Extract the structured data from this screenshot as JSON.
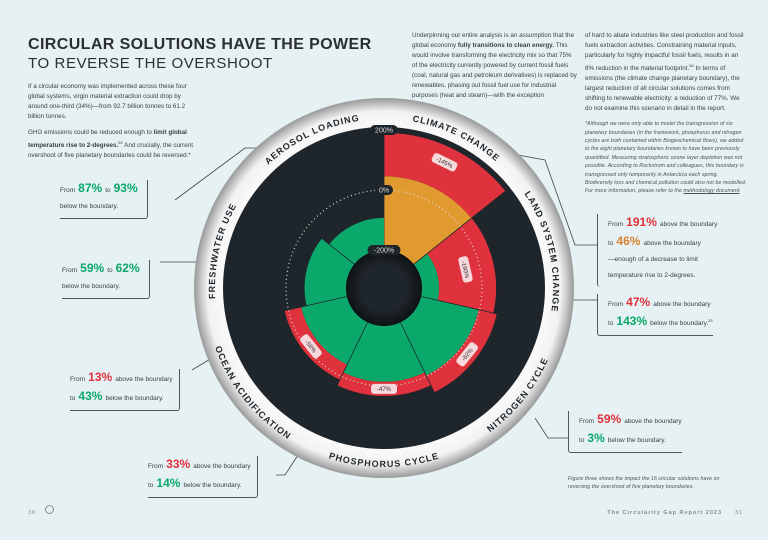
{
  "header": {
    "title": "CIRCULAR SOLUTIONS HAVE THE POWER",
    "subtitle": "TO REVERSE THE OVERSHOOT"
  },
  "left_text": {
    "p1": "If a circular economy was implemented across these four global systems, virgin material extraction could drop by around one-third (34%)—from 92.7 billion tonnes to 61.2 billion tonnes.",
    "p2_a": "GHG emissions could be reduced enough to ",
    "p2_b": "limit global temperature rise to 2-degrees.",
    "p2_sup": "52",
    "p2_c": " And crucially, the current overshoot of five planetary boundaries could be reversed.*"
  },
  "middle_text": {
    "a": "Underpinning our entire analysis is an assumption that the global economy ",
    "b": "fully transitions to clean energy.",
    "c": " This would involve transforming the electricity mix so that 75% of the electricity currently powered by current fossil fuels (coal, natural gas and petroleum derivatives) is replaced by renewables, phasing out fossil fuel use for industrial purposes (heat and steam)—with the exception"
  },
  "right_text": {
    "a": "of hard to abate industries like steel production and fossil fuels extraction activities. Constraining material inputs, particularly for highly impactful fossil fuels, results in an 8% reduction in the material footprint.",
    "sup": "54",
    "b": " In terms of emissions (the climate change planetary boundary), the largest reduction of all circular solutions comes from shifting to renewable electricity: a reduction of 77%. We do not examine this scenario in detail in the report.",
    "note": "*Although we were only able to model the transgression of six planetary boundaries (in the framework, phosphorus and nitrogen cycles are both contained within Biogeochemical flows), we added to the eight planetary boundaries known to have been previously quantified. Measuring stratospheric ozone layer depletion was not possible. According to Rockstrom and colleagues, this boundary is transgressed only temporarily in Antarctica each spring. Biodiversity loss and chemical pollution could also not be modelled. For more information, please refer to the ",
    "note_link": "methodology document",
    "note_end": "."
  },
  "callouts": {
    "aerosol": {
      "from": "From",
      "v1": "87%",
      "to": "to",
      "v2": "93%",
      "tail": "below the boundary."
    },
    "freshwater": {
      "from": "From",
      "v1": "59%",
      "to": "to",
      "v2": "62%",
      "tail": "below the boundary."
    },
    "ocean": {
      "from": "From",
      "v1": "13%",
      "mid": "above the boundary",
      "to": "to",
      "v2": "43%",
      "tail": "below the boundary."
    },
    "phosphorus": {
      "from": "From",
      "v1": "33%",
      "mid": "above the boundary",
      "to": "to",
      "v2": "14%",
      "tail": "below the boundary."
    },
    "climate": {
      "from": "From",
      "v1": "191%",
      "mid": "above the boundary",
      "to": "to",
      "v2": "46%",
      "tail": "above the boundary",
      "extra1": "—enough of a decrease to limit",
      "extra2": "temperature rise to 2-degrees."
    },
    "land": {
      "from": "From",
      "v1": "47%",
      "mid": "above the boundary",
      "to": "to",
      "v2": "143%",
      "tail": "below the boundary.",
      "sup": "53"
    },
    "nitrogen": {
      "from": "From",
      "v1": "59%",
      "mid": "above the boundary",
      "to": "to",
      "v2": "3%",
      "tail": "below the boundary."
    }
  },
  "caption": "Figure three shows the impact the 16 circular solutions have on reversing the overshoot of five planetary boundaries.",
  "footer": {
    "left_page": "30",
    "report": "The Circularity Gap Report  2023",
    "right_page": "31"
  },
  "colors": {
    "green": "#0aa86a",
    "red": "#e0323c",
    "orange": "#e09a30",
    "dark": "#1f262b",
    "pill": "#f6d9dc"
  },
  "chart_data": {
    "type": "radial-bar",
    "scale_labels": [
      "200%",
      "0%",
      "-200%"
    ],
    "rlim": [
      -200,
      200
    ],
    "boundary": 0,
    "categories": [
      "CLIMATE CHANGE",
      "LAND SYSTEM CHANGE",
      "NITROGEN CYCLE",
      "PHOSPHORUS CYCLE",
      "OCEAN ACIDIFICATION",
      "FRESHWATER USE",
      "AEROSOL LOADING"
    ],
    "before": [
      191,
      47,
      59,
      33,
      13,
      -59,
      -87
    ],
    "after": [
      46,
      -143,
      -3,
      -14,
      -43,
      -62,
      -93
    ],
    "reduction_labels": [
      "-145%",
      "-190%",
      "-62%",
      "-47%",
      "-56%",
      "",
      ""
    ]
  }
}
